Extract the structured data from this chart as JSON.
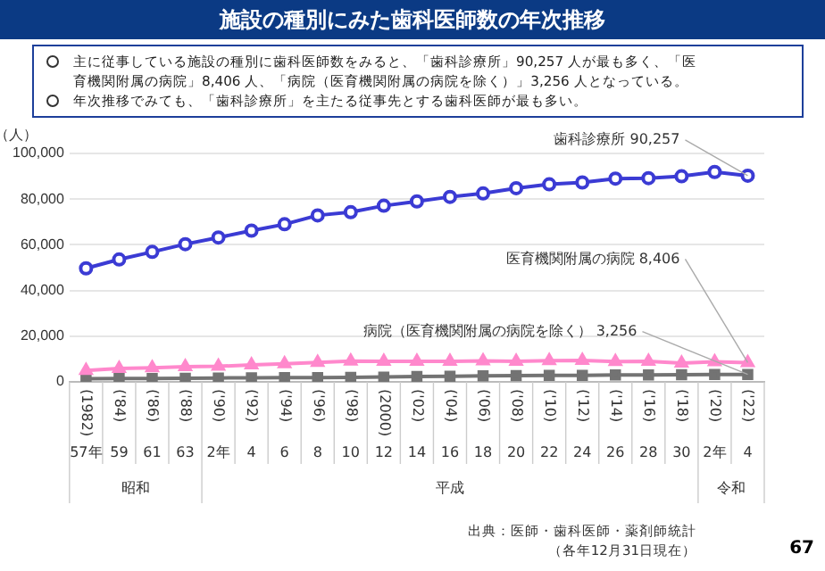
{
  "chart_data": {
    "type": "line",
    "title": "施設の種別にみた歯科医師数の年次推移",
    "ylabel": "（人）",
    "categories": [
      "(1982)57年",
      "('84)59",
      "('86)61",
      "('88)63",
      "('90)2年",
      "('92)4",
      "('94)6",
      "('96)8",
      "('98)10",
      "(2000)12",
      "('02)14",
      "('04)16",
      "('06)18",
      "('08)20",
      "('10)22",
      "('12)24",
      "('14)26",
      "('16)28",
      "('18)30",
      "('20)2年",
      "('22)4"
    ],
    "series": [
      {
        "name": "歯科診療所",
        "color": "#3b3bd4",
        "marker": "circle",
        "values": [
          49700,
          53600,
          56900,
          60300,
          63200,
          66200,
          69000,
          72900,
          74300,
          77100,
          79000,
          81000,
          82500,
          84800,
          86500,
          87300,
          89000,
          89200,
          90000,
          91900,
          90257
        ],
        "value_labels": [
          null,
          null,
          null,
          null,
          null,
          null,
          null,
          null,
          null,
          null,
          null,
          null,
          null,
          null,
          null,
          null,
          null,
          null,
          null,
          null,
          "90,257"
        ]
      },
      {
        "name": "医育機関附属の病院",
        "color": "#ff88cc",
        "marker": "triangle",
        "values": [
          5000,
          5900,
          6200,
          6600,
          6800,
          7400,
          7900,
          8500,
          9100,
          9000,
          9000,
          9000,
          9200,
          9000,
          9300,
          9400,
          8900,
          9000,
          8200,
          8800,
          8406
        ],
        "value_labels": [
          null,
          null,
          null,
          null,
          null,
          null,
          null,
          null,
          null,
          null,
          null,
          null,
          null,
          null,
          null,
          null,
          null,
          null,
          null,
          null,
          "8,406"
        ]
      },
      {
        "name": "病院（医育機関附属の病院を除く）",
        "color": "#737373",
        "marker": "square",
        "values": [
          1400,
          1500,
          1500,
          1600,
          1700,
          1800,
          1900,
          1900,
          2000,
          2100,
          2300,
          2400,
          2600,
          2700,
          2800,
          2800,
          3000,
          3000,
          3100,
          3200,
          3256
        ],
        "value_labels": [
          null,
          null,
          null,
          null,
          null,
          null,
          null,
          null,
          null,
          null,
          null,
          null,
          null,
          null,
          null,
          null,
          null,
          null,
          null,
          null,
          "3,256"
        ]
      }
    ],
    "ylim": [
      0,
      100000
    ],
    "yticks": [
      {
        "value": 0,
        "label": "0"
      },
      {
        "value": 20000,
        "label": "20,000"
      },
      {
        "value": 40000,
        "label": "40,000"
      },
      {
        "value": 60000,
        "label": "60,000"
      },
      {
        "value": 80000,
        "label": "80,000"
      },
      {
        "value": 100000,
        "label": "100,000"
      }
    ],
    "grid": "y",
    "legend": false,
    "annotations": [
      "主に従事している施設の種別に歯科医師数をみると、「歯科診療所」90,257 人が最も多く、「医育機関附属の病院」8,406 人、「病院（医育機関附属の病院を除く）」3,256 人となっている。",
      "年次推移でみても、「歯科診療所」を主たる従事先とする歯科医師が最も多い。",
      "出典：医師・歯科医師・薬剤師統計",
      "（各年12月31日現在）",
      "67",
      "昭和",
      "平成",
      "令和"
    ]
  }
}
